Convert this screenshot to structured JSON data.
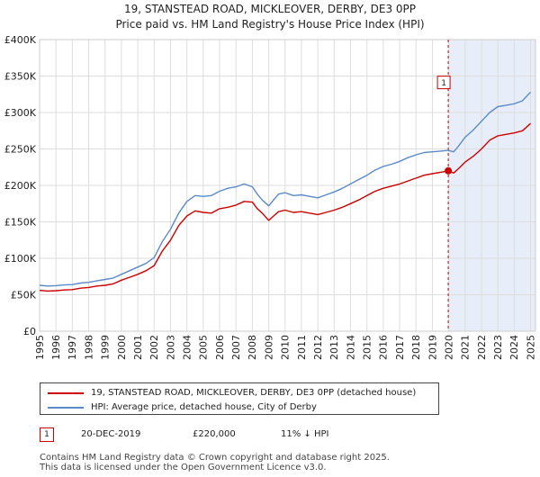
{
  "chart_data": {
    "type": "line",
    "title": "19, STANSTEAD ROAD, MICKLEOVER, DERBY, DE3 0PP",
    "subtitle": "Price paid vs. HM Land Registry's House Price Index (HPI)",
    "xlabel": "",
    "ylabel": "",
    "xlim": [
      1995,
      2025.3
    ],
    "ylim": [
      0,
      400000
    ],
    "y_ticks": [
      0,
      50000,
      100000,
      150000,
      200000,
      250000,
      300000,
      350000,
      400000
    ],
    "y_tick_labels": [
      "£0",
      "£50K",
      "£100K",
      "£150K",
      "£200K",
      "£250K",
      "£300K",
      "£350K",
      "£400K"
    ],
    "x_ticks": [
      1995,
      1996,
      1997,
      1998,
      1999,
      2000,
      2001,
      2002,
      2003,
      2004,
      2005,
      2006,
      2007,
      2008,
      2009,
      2010,
      2011,
      2012,
      2013,
      2014,
      2015,
      2016,
      2017,
      2018,
      2019,
      2020,
      2021,
      2022,
      2023,
      2024,
      2025
    ],
    "x_tick_labels": [
      "1995",
      "1996",
      "1997",
      "1998",
      "1999",
      "2000",
      "2001",
      "2002",
      "2003",
      "2004",
      "2005",
      "2006",
      "2007",
      "2008",
      "2009",
      "2010",
      "2011",
      "2012",
      "2013",
      "2014",
      "2015",
      "2016",
      "2017",
      "2018",
      "2019",
      "2020",
      "2021",
      "2022",
      "2023",
      "2024",
      "2025"
    ],
    "grid": true,
    "shaded_region": {
      "from": 2019.97,
      "to": 2025.3,
      "color": "#e8eef9"
    },
    "series": [
      {
        "name": "19, STANSTEAD ROAD, MICKLEOVER, DERBY, DE3 0PP (detached house)",
        "color": "#cc0000",
        "x": [
          1995.0,
          1995.5,
          1996.0,
          1996.5,
          1997.0,
          1997.5,
          1998.0,
          1998.5,
          1999.0,
          1999.5,
          2000.0,
          2000.5,
          2001.0,
          2001.5,
          2002.0,
          2002.5,
          2003.0,
          2003.5,
          2004.0,
          2004.5,
          2005.0,
          2005.5,
          2006.0,
          2006.5,
          2007.0,
          2007.5,
          2008.0,
          2008.3,
          2008.6,
          2009.0,
          2009.3,
          2009.6,
          2010.0,
          2010.5,
          2011.0,
          2011.5,
          2012.0,
          2012.5,
          2013.0,
          2013.5,
          2014.0,
          2014.5,
          2015.0,
          2015.5,
          2016.0,
          2016.5,
          2017.0,
          2017.5,
          2018.0,
          2018.5,
          2019.0,
          2019.5,
          2019.97,
          2020.3,
          2020.6,
          2021.0,
          2021.5,
          2022.0,
          2022.5,
          2023.0,
          2023.5,
          2024.0,
          2024.5,
          2025.0
        ],
        "values": [
          56000,
          55000,
          55500,
          56500,
          57000,
          59000,
          60000,
          62000,
          63000,
          65000,
          70000,
          74000,
          78000,
          83000,
          90000,
          110000,
          125000,
          145000,
          158000,
          165000,
          163000,
          162000,
          168000,
          170000,
          173000,
          178000,
          177000,
          168000,
          162000,
          152000,
          158000,
          164000,
          166000,
          163000,
          164000,
          162000,
          160000,
          163000,
          166000,
          170000,
          175000,
          180000,
          186000,
          192000,
          196000,
          199000,
          202000,
          206000,
          210000,
          214000,
          216000,
          218000,
          220000,
          217000,
          223000,
          232000,
          240000,
          250000,
          262000,
          268000,
          270000,
          272000,
          275000,
          285000
        ]
      },
      {
        "name": "HPI: Average price, detached house, City of Derby",
        "color": "#5b8ac8",
        "x": [
          1995.0,
          1995.5,
          1996.0,
          1996.5,
          1997.0,
          1997.5,
          1998.0,
          1998.5,
          1999.0,
          1999.5,
          2000.0,
          2000.5,
          2001.0,
          2001.5,
          2002.0,
          2002.5,
          2003.0,
          2003.5,
          2004.0,
          2004.5,
          2005.0,
          2005.5,
          2006.0,
          2006.5,
          2007.0,
          2007.5,
          2008.0,
          2008.3,
          2008.6,
          2009.0,
          2009.3,
          2009.6,
          2010.0,
          2010.5,
          2011.0,
          2011.5,
          2012.0,
          2012.5,
          2013.0,
          2013.5,
          2014.0,
          2014.5,
          2015.0,
          2015.5,
          2016.0,
          2016.5,
          2017.0,
          2017.5,
          2018.0,
          2018.5,
          2019.0,
          2019.5,
          2019.97,
          2020.3,
          2020.6,
          2021.0,
          2021.5,
          2022.0,
          2022.5,
          2023.0,
          2023.5,
          2024.0,
          2024.5,
          2025.0
        ],
        "values": [
          63000,
          62000,
          62500,
          63500,
          64000,
          66000,
          67000,
          69000,
          71000,
          73000,
          78000,
          83000,
          88000,
          93000,
          101000,
          123000,
          140000,
          162000,
          178000,
          186000,
          185000,
          186000,
          192000,
          196000,
          198000,
          202000,
          198000,
          188000,
          180000,
          172000,
          180000,
          188000,
          190000,
          186000,
          187000,
          185000,
          183000,
          187000,
          191000,
          196000,
          202000,
          208000,
          214000,
          221000,
          226000,
          229000,
          233000,
          238000,
          242000,
          245000,
          246000,
          247000,
          248000,
          246000,
          254000,
          266000,
          276000,
          288000,
          300000,
          308000,
          310000,
          312000,
          316000,
          328000
        ]
      }
    ],
    "annotations": [
      {
        "label": "1",
        "x": 2019.97,
        "y": 220000,
        "box_value_y": 340000
      }
    ]
  },
  "legend": {
    "items": [
      {
        "label": "19, STANSTEAD ROAD, MICKLEOVER, DERBY, DE3 0PP (detached house)",
        "color": "#cc0000"
      },
      {
        "label": "HPI: Average price, detached house, City of Derby",
        "color": "#5b8ac8"
      }
    ]
  },
  "transaction": {
    "badge": "1",
    "date": "20-DEC-2019",
    "price": "£220,000",
    "hpi_change": "11% ↓ HPI"
  },
  "footer": {
    "line1": "Contains HM Land Registry data © Crown copyright and database right 2025.",
    "line2": "This data is licensed under the Open Government Licence v3.0."
  }
}
